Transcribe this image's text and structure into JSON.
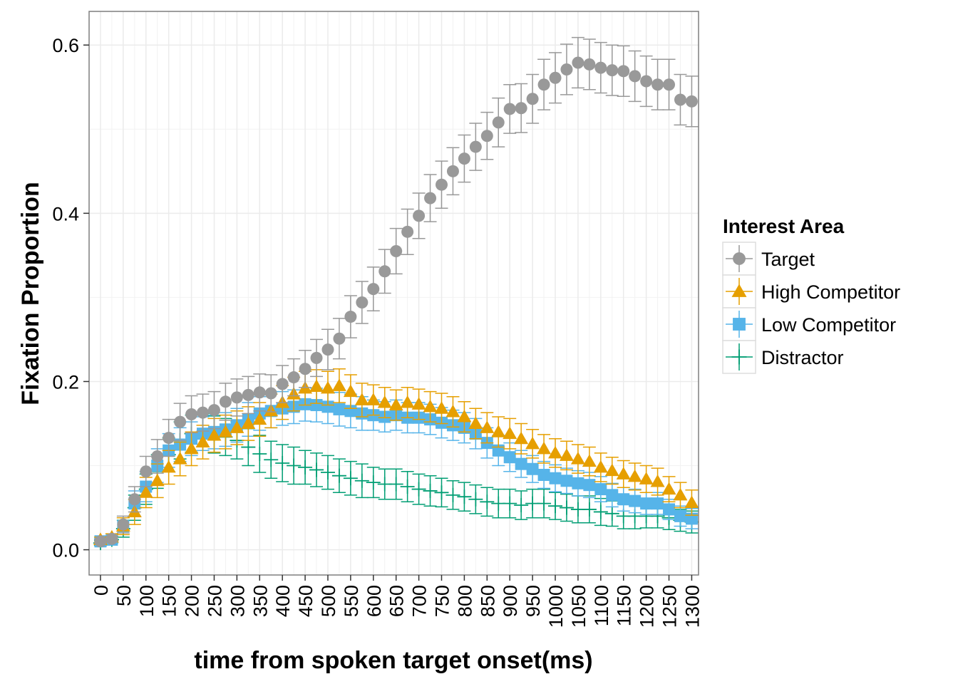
{
  "chart_data": {
    "type": "scatter",
    "xlabel": "time from spoken target onset(ms)",
    "ylabel": "Fixation Proportion",
    "x_ticks": [
      "0",
      "50",
      "100",
      "150",
      "200",
      "250",
      "300",
      "350",
      "400",
      "450",
      "500",
      "550",
      "600",
      "650",
      "700",
      "750",
      "800",
      "850",
      "900",
      "950",
      "1000",
      "1050",
      "1100",
      "1150",
      "1200",
      "1250",
      "1300"
    ],
    "y_ticks": [
      "0.0",
      "0.2",
      "0.4",
      "0.6"
    ],
    "xlim": [
      -25,
      1315
    ],
    "ylim": [
      -0.03,
      0.64
    ],
    "grid": true,
    "legend": {
      "title": "Interest Area",
      "placement": "right"
    },
    "x": [
      0,
      25,
      50,
      75,
      100,
      125,
      150,
      175,
      200,
      225,
      250,
      275,
      300,
      325,
      350,
      375,
      400,
      425,
      450,
      475,
      500,
      525,
      550,
      575,
      600,
      625,
      650,
      675,
      700,
      725,
      750,
      775,
      800,
      825,
      850,
      875,
      900,
      925,
      950,
      975,
      1000,
      1025,
      1050,
      1075,
      1100,
      1125,
      1150,
      1175,
      1200,
      1225,
      1250,
      1275,
      1300
    ],
    "series": [
      {
        "name": "Target",
        "marker": "circle",
        "color": "#999999",
        "values": [
          0.01,
          0.013,
          0.03,
          0.06,
          0.093,
          0.111,
          0.133,
          0.152,
          0.161,
          0.163,
          0.166,
          0.176,
          0.181,
          0.184,
          0.187,
          0.186,
          0.197,
          0.205,
          0.215,
          0.228,
          0.238,
          0.251,
          0.277,
          0.294,
          0.31,
          0.331,
          0.355,
          0.378,
          0.397,
          0.418,
          0.434,
          0.45,
          0.465,
          0.479,
          0.492,
          0.508,
          0.524,
          0.525,
          0.536,
          0.553,
          0.561,
          0.571,
          0.579,
          0.577,
          0.573,
          0.57,
          0.569,
          0.563,
          0.557,
          0.553,
          0.553,
          0.535,
          0.533
        ],
        "err": [
          0.002,
          0.003,
          0.01,
          0.015,
          0.018,
          0.02,
          0.022,
          0.022,
          0.022,
          0.022,
          0.022,
          0.022,
          0.022,
          0.022,
          0.022,
          0.022,
          0.022,
          0.022,
          0.022,
          0.022,
          0.024,
          0.024,
          0.025,
          0.025,
          0.026,
          0.026,
          0.027,
          0.027,
          0.027,
          0.028,
          0.028,
          0.028,
          0.028,
          0.028,
          0.028,
          0.029,
          0.029,
          0.029,
          0.029,
          0.03,
          0.03,
          0.03,
          0.03,
          0.03,
          0.03,
          0.03,
          0.03,
          0.03,
          0.03,
          0.03,
          0.03,
          0.03,
          0.03
        ]
      },
      {
        "name": "High Competitor",
        "marker": "triangle",
        "color": "#E69F00",
        "values": [
          0.012,
          0.015,
          0.028,
          0.045,
          0.068,
          0.082,
          0.098,
          0.108,
          0.12,
          0.128,
          0.136,
          0.14,
          0.145,
          0.15,
          0.155,
          0.165,
          0.175,
          0.185,
          0.192,
          0.194,
          0.192,
          0.195,
          0.188,
          0.178,
          0.178,
          0.175,
          0.172,
          0.175,
          0.173,
          0.17,
          0.168,
          0.164,
          0.158,
          0.15,
          0.145,
          0.14,
          0.138,
          0.132,
          0.126,
          0.12,
          0.115,
          0.112,
          0.108,
          0.105,
          0.098,
          0.094,
          0.09,
          0.087,
          0.084,
          0.081,
          0.072,
          0.065,
          0.056
        ],
        "err": [
          0.003,
          0.004,
          0.01,
          0.015,
          0.018,
          0.02,
          0.02,
          0.02,
          0.02,
          0.02,
          0.02,
          0.02,
          0.02,
          0.02,
          0.02,
          0.02,
          0.02,
          0.02,
          0.02,
          0.02,
          0.02,
          0.02,
          0.02,
          0.02,
          0.018,
          0.018,
          0.018,
          0.018,
          0.018,
          0.018,
          0.018,
          0.018,
          0.018,
          0.018,
          0.018,
          0.018,
          0.018,
          0.018,
          0.017,
          0.017,
          0.017,
          0.017,
          0.017,
          0.017,
          0.017,
          0.016,
          0.016,
          0.016,
          0.016,
          0.016,
          0.015,
          0.015,
          0.015
        ]
      },
      {
        "name": "Low Competitor",
        "marker": "square",
        "color": "#56B4E9",
        "values": [
          0.01,
          0.012,
          0.028,
          0.055,
          0.075,
          0.1,
          0.118,
          0.125,
          0.132,
          0.138,
          0.14,
          0.143,
          0.148,
          0.155,
          0.162,
          0.165,
          0.168,
          0.17,
          0.173,
          0.172,
          0.17,
          0.167,
          0.165,
          0.162,
          0.16,
          0.158,
          0.16,
          0.157,
          0.157,
          0.155,
          0.151,
          0.148,
          0.145,
          0.138,
          0.127,
          0.118,
          0.11,
          0.102,
          0.096,
          0.089,
          0.085,
          0.082,
          0.079,
          0.077,
          0.072,
          0.065,
          0.06,
          0.058,
          0.055,
          0.055,
          0.048,
          0.04,
          0.037
        ],
        "err": [
          0.003,
          0.004,
          0.01,
          0.015,
          0.018,
          0.02,
          0.02,
          0.02,
          0.02,
          0.02,
          0.02,
          0.02,
          0.02,
          0.02,
          0.02,
          0.02,
          0.02,
          0.02,
          0.02,
          0.02,
          0.02,
          0.02,
          0.02,
          0.02,
          0.018,
          0.018,
          0.018,
          0.018,
          0.018,
          0.018,
          0.018,
          0.018,
          0.018,
          0.018,
          0.018,
          0.018,
          0.017,
          0.016,
          0.016,
          0.016,
          0.016,
          0.015,
          0.015,
          0.015,
          0.015,
          0.014,
          0.014,
          0.014,
          0.013,
          0.013,
          0.012,
          0.012,
          0.012
        ]
      },
      {
        "name": "Distractor",
        "marker": "cross",
        "color": "#009E73",
        "values": [
          0.008,
          0.012,
          0.025,
          0.05,
          0.072,
          0.093,
          0.113,
          0.13,
          0.138,
          0.14,
          0.137,
          0.134,
          0.13,
          0.122,
          0.114,
          0.107,
          0.103,
          0.1,
          0.098,
          0.095,
          0.092,
          0.088,
          0.085,
          0.082,
          0.08,
          0.078,
          0.078,
          0.075,
          0.072,
          0.07,
          0.068,
          0.065,
          0.063,
          0.06,
          0.057,
          0.055,
          0.055,
          0.053,
          0.055,
          0.055,
          0.052,
          0.05,
          0.048,
          0.048,
          0.045,
          0.043,
          0.04,
          0.04,
          0.04,
          0.04,
          0.038,
          0.035,
          0.033
        ],
        "err": [
          0.003,
          0.004,
          0.01,
          0.015,
          0.018,
          0.02,
          0.02,
          0.022,
          0.022,
          0.022,
          0.022,
          0.022,
          0.022,
          0.022,
          0.022,
          0.022,
          0.022,
          0.022,
          0.02,
          0.02,
          0.02,
          0.02,
          0.02,
          0.02,
          0.018,
          0.018,
          0.018,
          0.018,
          0.018,
          0.018,
          0.017,
          0.017,
          0.017,
          0.017,
          0.017,
          0.017,
          0.017,
          0.017,
          0.017,
          0.017,
          0.016,
          0.016,
          0.016,
          0.016,
          0.016,
          0.015,
          0.015,
          0.015,
          0.014,
          0.014,
          0.014,
          0.013,
          0.013
        ]
      }
    ]
  }
}
